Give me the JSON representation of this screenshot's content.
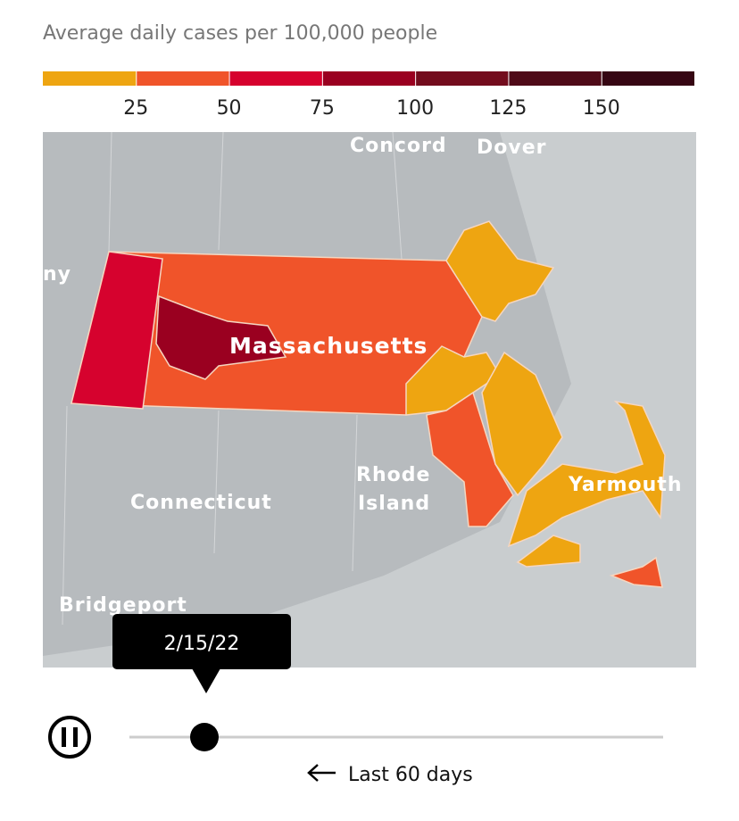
{
  "header": {
    "title": "Average daily cases per 100,000 people"
  },
  "legend": {
    "colors": [
      "#eea511",
      "#f0542a",
      "#d6022e",
      "#9a0020",
      "#730c1d",
      "#4f0a18",
      "#360613"
    ],
    "ticks": [
      25,
      50,
      75,
      100,
      125,
      150
    ]
  },
  "map": {
    "labels": [
      "Concord",
      "Dover",
      "ny",
      "Massachusetts",
      "Rhode",
      "Island",
      "Connecticut",
      "Yarmouth",
      "Bridgeport"
    ]
  },
  "tooltip": {
    "date": "2/15/22"
  },
  "slider": {
    "caption": "Last 60 days"
  }
}
